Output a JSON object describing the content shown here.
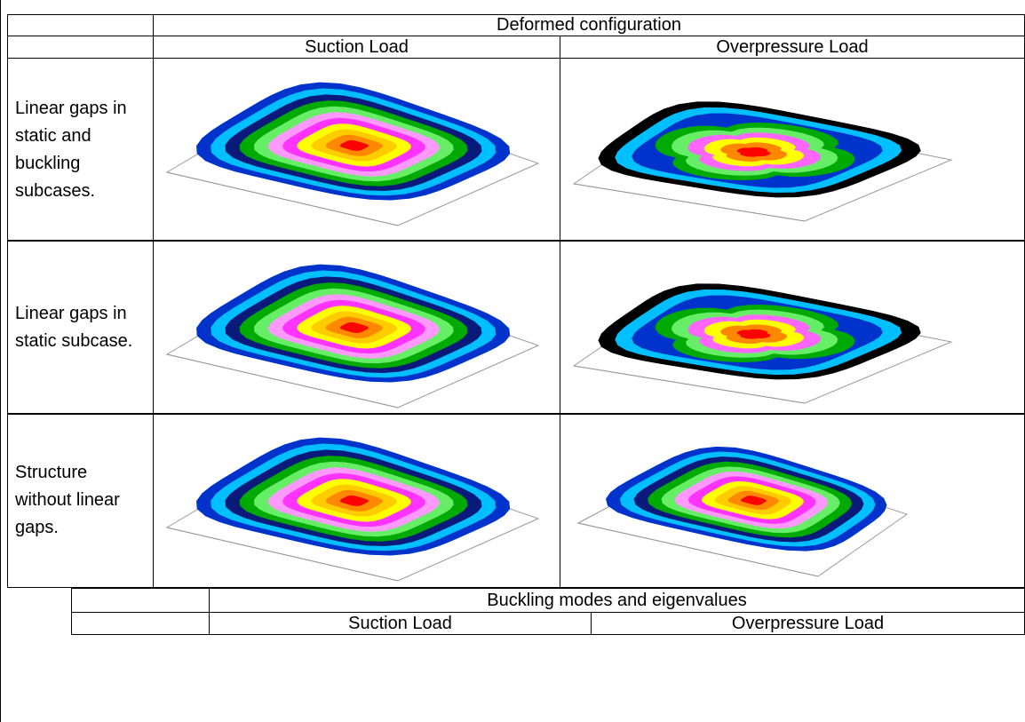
{
  "table1": {
    "header": "Deformed configuration",
    "columns": [
      "Suction Load",
      "Overpressure Load"
    ],
    "rows": [
      "Linear gaps in static and buckling subcases.",
      "Linear gaps in static subcase.",
      "Structure without linear gaps."
    ]
  },
  "table2": {
    "header": "Buckling modes and eigenvalues",
    "columns": [
      "Suction Load",
      "Overpressure Load"
    ]
  }
}
